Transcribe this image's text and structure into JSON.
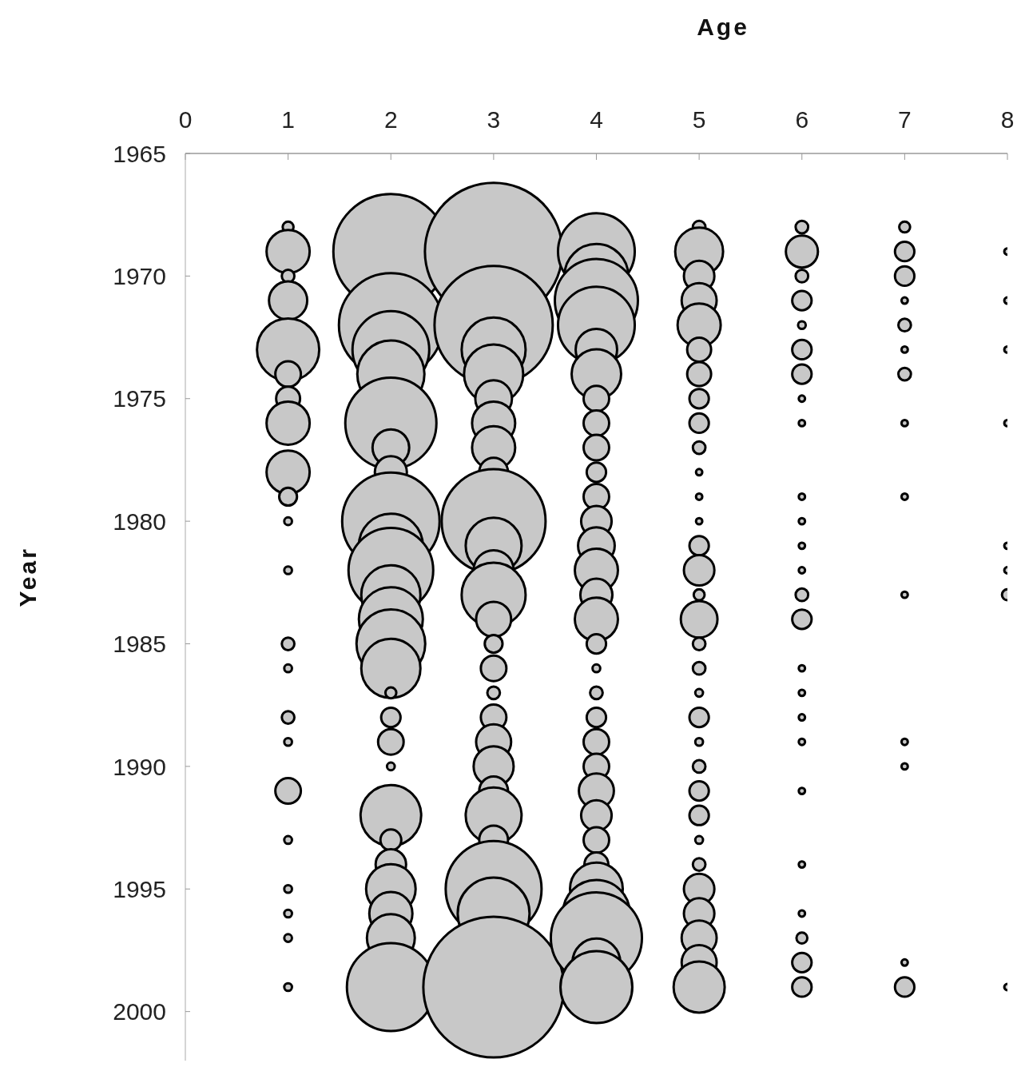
{
  "chart_data": {
    "type": "bubble",
    "xlabel": "Age",
    "ylabel": "Year",
    "xlim": [
      0,
      8
    ],
    "xticks": [
      0,
      1,
      2,
      3,
      4,
      5,
      6,
      7,
      8
    ],
    "ylim": [
      2002,
      1965
    ],
    "yticks": [
      1965,
      1970,
      1975,
      1980,
      1985,
      1990,
      1995,
      2000
    ],
    "series": [
      {
        "color": "#c8c8c8",
        "x": [
          1,
          1,
          1,
          1,
          1,
          1,
          1,
          1,
          1,
          1,
          1,
          1,
          1,
          1,
          1,
          1,
          1,
          1,
          1,
          1,
          1,
          1
        ],
        "values": [
          1968,
          1969,
          1970,
          1971,
          1973,
          1974,
          1975,
          1976,
          1978,
          1979,
          1980,
          1982,
          1985,
          1986,
          1988,
          1989,
          1991,
          1993,
          1995,
          1996,
          1997,
          1999
        ],
        "sizes": [
          0.006,
          0.094,
          0.008,
          0.074,
          0.196,
          0.033,
          0.029,
          0.094,
          0.094,
          0.016,
          0.003,
          0.003,
          0.008,
          0.003,
          0.008,
          0.003,
          0.033,
          0.003,
          0.003,
          0.003,
          0.003,
          0.003
        ]
      },
      {
        "color": "#c8c8c8",
        "x": [
          2,
          2,
          2,
          2,
          2,
          2,
          2,
          2,
          2,
          2,
          2,
          2,
          2,
          2,
          2,
          2,
          2,
          2,
          2,
          2,
          2,
          2,
          2,
          2,
          2
        ],
        "values": [
          1969,
          1972,
          1973,
          1974,
          1976,
          1977,
          1978,
          1980,
          1981,
          1982,
          1983,
          1984,
          1985,
          1986,
          1987,
          1988,
          1989,
          1990,
          1992,
          1993,
          1994,
          1995,
          1996,
          1997,
          1999
        ],
        "sizes": [
          0.669,
          0.546,
          0.298,
          0.228,
          0.42,
          0.068,
          0.052,
          0.48,
          0.207,
          0.363,
          0.177,
          0.207,
          0.239,
          0.177,
          0.006,
          0.019,
          0.033,
          0.003,
          0.186,
          0.022,
          0.047,
          0.124,
          0.094,
          0.116,
          0.391
        ]
      },
      {
        "color": "#c8c8c8",
        "x": [
          3,
          3,
          3,
          3,
          3,
          3,
          3,
          3,
          3,
          3,
          3,
          3,
          3,
          3,
          3,
          3,
          3,
          3,
          3,
          3,
          3,
          3,
          3,
          3,
          3
        ],
        "values": [
          1969,
          1972,
          1973,
          1974,
          1975,
          1976,
          1977,
          1978,
          1980,
          1981,
          1982,
          1983,
          1984,
          1985,
          1986,
          1987,
          1988,
          1989,
          1990,
          1991,
          1992,
          1993,
          1995,
          1996,
          1999
        ],
        "sizes": [
          0.955,
          0.707,
          0.207,
          0.177,
          0.068,
          0.094,
          0.094,
          0.042,
          0.546,
          0.158,
          0.081,
          0.207,
          0.062,
          0.016,
          0.033,
          0.008,
          0.033,
          0.062,
          0.081,
          0.042,
          0.158,
          0.042,
          0.465,
          0.261,
          1
        ]
      },
      {
        "color": "#c8c8c8",
        "x": [
          4,
          4,
          4,
          4,
          4,
          4,
          4,
          4,
          4,
          4,
          4,
          4,
          4,
          4,
          4,
          4,
          4,
          4,
          4,
          4,
          4,
          4,
          4,
          4,
          4,
          4,
          4,
          4,
          4,
          4,
          4
        ],
        "values": [
          1969,
          1970,
          1971,
          1972,
          1973,
          1974,
          1975,
          1976,
          1977,
          1978,
          1979,
          1980,
          1981,
          1982,
          1983,
          1984,
          1985,
          1986,
          1987,
          1988,
          1989,
          1990,
          1991,
          1992,
          1993,
          1994,
          1995,
          1996,
          1997,
          1998,
          1999
        ],
        "sizes": [
          0.298,
          0.207,
          0.349,
          0.298,
          0.087,
          0.124,
          0.033,
          0.033,
          0.033,
          0.019,
          0.033,
          0.047,
          0.068,
          0.094,
          0.052,
          0.094,
          0.019,
          0.003,
          0.008,
          0.019,
          0.033,
          0.033,
          0.062,
          0.047,
          0.033,
          0.029,
          0.141,
          0.228,
          0.42,
          0.116,
          0.261
        ]
      },
      {
        "color": "#c8c8c8",
        "x": [
          5,
          5,
          5,
          5,
          5,
          5,
          5,
          5,
          5,
          5,
          5,
          5,
          5,
          5,
          5,
          5,
          5,
          5,
          5,
          5,
          5,
          5,
          5,
          5,
          5,
          5,
          5,
          5,
          5,
          5,
          5,
          5
        ],
        "values": [
          1968,
          1969,
          1970,
          1971,
          1972,
          1973,
          1974,
          1975,
          1976,
          1977,
          1978,
          1979,
          1980,
          1981,
          1982,
          1983,
          1984,
          1985,
          1986,
          1987,
          1988,
          1989,
          1990,
          1991,
          1992,
          1993,
          1994,
          1995,
          1996,
          1997,
          1998,
          1999
        ],
        "sizes": [
          0.008,
          0.116,
          0.047,
          0.062,
          0.094,
          0.029,
          0.029,
          0.019,
          0.019,
          0.008,
          0.002,
          0.002,
          0.002,
          0.019,
          0.047,
          0.006,
          0.068,
          0.008,
          0.008,
          0.003,
          0.019,
          0.003,
          0.008,
          0.019,
          0.019,
          0.003,
          0.008,
          0.047,
          0.047,
          0.062,
          0.062,
          0.132
        ]
      },
      {
        "color": "#c8c8c8",
        "x": [
          6,
          6,
          6,
          6,
          6,
          6,
          6,
          6,
          6,
          6,
          6,
          6,
          6,
          6,
          6,
          6,
          6,
          6,
          6,
          6,
          6,
          6,
          6,
          6,
          6
        ],
        "values": [
          1968,
          1969,
          1970,
          1971,
          1972,
          1973,
          1974,
          1975,
          1976,
          1979,
          1980,
          1981,
          1982,
          1983,
          1984,
          1986,
          1987,
          1988,
          1989,
          1991,
          1994,
          1996,
          1997,
          1998,
          1999
        ],
        "sizes": [
          0.008,
          0.052,
          0.008,
          0.019,
          0.003,
          0.019,
          0.019,
          0.002,
          0.002,
          0.002,
          0.002,
          0.002,
          0.002,
          0.008,
          0.019,
          0.002,
          0.002,
          0.002,
          0.002,
          0.002,
          0.002,
          0.002,
          0.006,
          0.019,
          0.019
        ]
      },
      {
        "color": "#c8c8c8",
        "x": [
          7,
          7,
          7,
          7,
          7,
          7,
          7,
          7,
          7,
          7,
          7,
          7,
          7,
          7
        ],
        "values": [
          1968,
          1969,
          1970,
          1971,
          1972,
          1973,
          1974,
          1976,
          1979,
          1983,
          1989,
          1990,
          1998,
          1999
        ],
        "sizes": [
          0.006,
          0.019,
          0.019,
          0.002,
          0.008,
          0.002,
          0.008,
          0.002,
          0.002,
          0.002,
          0.002,
          0.002,
          0.002,
          0.019
        ]
      },
      {
        "color": "#c8c8c8",
        "x": [
          8,
          8,
          8,
          8,
          8,
          8,
          8,
          8
        ],
        "values": [
          1969,
          1971,
          1973,
          1976,
          1981,
          1982,
          1983,
          1999
        ],
        "sizes": [
          0.002,
          0.002,
          0.002,
          0.002,
          0.002,
          0.002,
          0.006,
          0.002
        ]
      }
    ]
  }
}
